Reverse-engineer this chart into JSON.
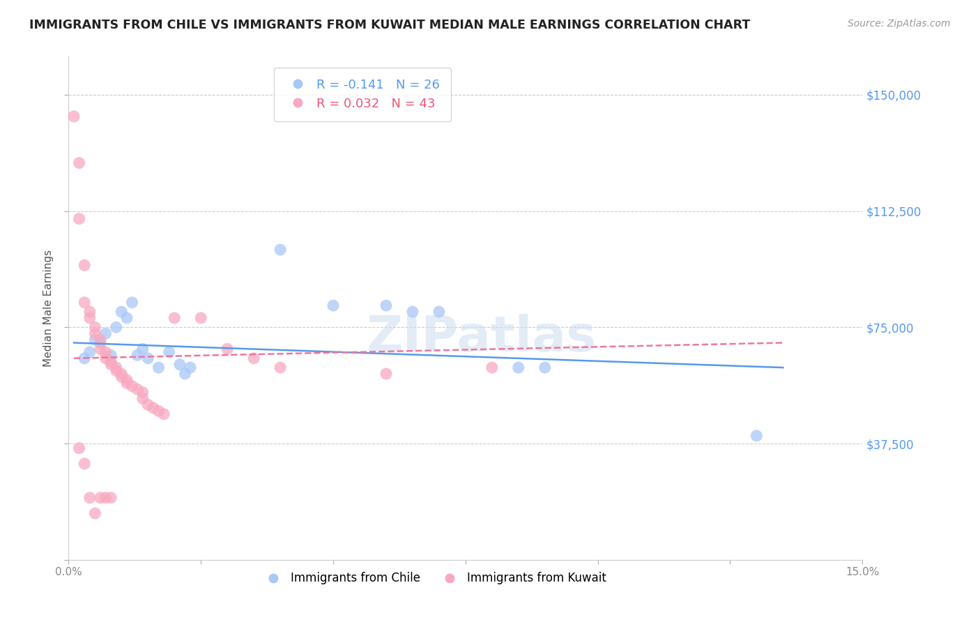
{
  "title": "IMMIGRANTS FROM CHILE VS IMMIGRANTS FROM KUWAIT MEDIAN MALE EARNINGS CORRELATION CHART",
  "source": "Source: ZipAtlas.com",
  "ylabel": "Median Male Earnings",
  "xlim": [
    0.0,
    0.15
  ],
  "ylim": [
    0,
    162500
  ],
  "yticks": [
    0,
    37500,
    75000,
    112500,
    150000
  ],
  "ytick_labels": [
    "",
    "$37,500",
    "$75,000",
    "$112,500",
    "$150,000"
  ],
  "xticks": [
    0.0,
    0.025,
    0.05,
    0.075,
    0.1,
    0.125,
    0.15
  ],
  "xtick_labels": [
    "0.0%",
    "",
    "",
    "",
    "",
    "",
    "15.0%"
  ],
  "background_color": "#ffffff",
  "grid_color": "#cccccc",
  "watermark": "ZIPatlas",
  "chile_color": "#a8c8f8",
  "kuwait_color": "#f8a8c0",
  "chile_line_color": "#5599ee",
  "kuwait_line_color": "#ee7799",
  "chile_R": -0.141,
  "chile_N": 26,
  "kuwait_R": 0.032,
  "kuwait_N": 43,
  "chile_line_x": [
    0.001,
    0.135
  ],
  "chile_line_y": [
    70000,
    62000
  ],
  "kuwait_line_x": [
    0.001,
    0.135
  ],
  "kuwait_line_y": [
    65000,
    70000
  ],
  "chile_points": [
    [
      0.003,
      65000
    ],
    [
      0.004,
      67000
    ],
    [
      0.005,
      71000
    ],
    [
      0.006,
      70000
    ],
    [
      0.007,
      73000
    ],
    [
      0.008,
      66000
    ],
    [
      0.009,
      75000
    ],
    [
      0.01,
      80000
    ],
    [
      0.011,
      78000
    ],
    [
      0.012,
      83000
    ],
    [
      0.013,
      66000
    ],
    [
      0.014,
      68000
    ],
    [
      0.015,
      65000
    ],
    [
      0.017,
      62000
    ],
    [
      0.019,
      67000
    ],
    [
      0.021,
      63000
    ],
    [
      0.022,
      60000
    ],
    [
      0.023,
      62000
    ],
    [
      0.04,
      100000
    ],
    [
      0.05,
      82000
    ],
    [
      0.06,
      82000
    ],
    [
      0.065,
      80000
    ],
    [
      0.07,
      80000
    ],
    [
      0.085,
      62000
    ],
    [
      0.09,
      62000
    ],
    [
      0.13,
      40000
    ]
  ],
  "kuwait_points": [
    [
      0.001,
      143000
    ],
    [
      0.002,
      128000
    ],
    [
      0.002,
      110000
    ],
    [
      0.003,
      95000
    ],
    [
      0.003,
      83000
    ],
    [
      0.004,
      80000
    ],
    [
      0.004,
      78000
    ],
    [
      0.005,
      75000
    ],
    [
      0.005,
      73000
    ],
    [
      0.006,
      71000
    ],
    [
      0.006,
      68000
    ],
    [
      0.007,
      67000
    ],
    [
      0.007,
      65000
    ],
    [
      0.008,
      64000
    ],
    [
      0.008,
      63000
    ],
    [
      0.009,
      62000
    ],
    [
      0.009,
      61000
    ],
    [
      0.01,
      60000
    ],
    [
      0.01,
      59000
    ],
    [
      0.011,
      58000
    ],
    [
      0.011,
      57000
    ],
    [
      0.012,
      56000
    ],
    [
      0.013,
      55000
    ],
    [
      0.014,
      54000
    ],
    [
      0.014,
      52000
    ],
    [
      0.015,
      50000
    ],
    [
      0.016,
      49000
    ],
    [
      0.017,
      48000
    ],
    [
      0.018,
      47000
    ],
    [
      0.02,
      78000
    ],
    [
      0.025,
      78000
    ],
    [
      0.03,
      68000
    ],
    [
      0.035,
      65000
    ],
    [
      0.04,
      62000
    ],
    [
      0.06,
      60000
    ],
    [
      0.08,
      62000
    ],
    [
      0.002,
      36000
    ],
    [
      0.003,
      31000
    ],
    [
      0.004,
      20000
    ],
    [
      0.006,
      20000
    ],
    [
      0.007,
      20000
    ],
    [
      0.008,
      20000
    ],
    [
      0.005,
      15000
    ]
  ]
}
